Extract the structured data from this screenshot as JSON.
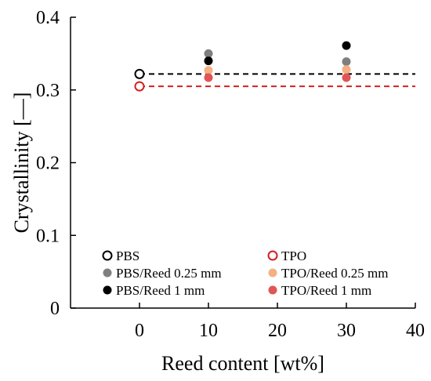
{
  "chart_data": {
    "type": "scatter",
    "xlabel": "Reed content [wt%]",
    "ylabel": "Crystallinity [—]",
    "xlim": [
      -10,
      40
    ],
    "ylim": [
      0,
      0.4
    ],
    "xticks": [
      0,
      10,
      20,
      30,
      40
    ],
    "yticks": [
      0,
      0.1,
      0.2,
      0.3,
      0.4
    ],
    "xtick_labels": [
      "0",
      "10",
      "20",
      "30",
      "40"
    ],
    "ytick_labels": [
      "0",
      "0.1",
      "0.2",
      "0.3",
      "0.4"
    ],
    "grid": false,
    "legend_position": "bottom-left, inside plot",
    "series": [
      {
        "name": "PBS",
        "marker": "open-circle",
        "color": "#000000",
        "x": [
          0
        ],
        "y": [
          0.322
        ]
      },
      {
        "name": "TPO",
        "marker": "open-circle",
        "color": "#d42020",
        "x": [
          0
        ],
        "y": [
          0.305
        ]
      },
      {
        "name": "PBS/Reed 0.25 mm",
        "marker": "filled-circle",
        "color": "#7f7f7f",
        "x": [
          10,
          30
        ],
        "y": [
          0.35,
          0.339
        ]
      },
      {
        "name": "TPO/Reed 0.25 mm",
        "marker": "filled-circle",
        "color": "#f4b183",
        "x": [
          10,
          30
        ],
        "y": [
          0.327,
          0.328
        ]
      },
      {
        "name": "PBS/Reed 1 mm",
        "marker": "filled-circle",
        "color": "#000000",
        "x": [
          10,
          30
        ],
        "y": [
          0.34,
          0.361
        ]
      },
      {
        "name": "TPO/Reed 1 mm",
        "marker": "filled-circle",
        "color": "#e05555",
        "x": [
          10,
          30
        ],
        "y": [
          0.317,
          0.317
        ]
      }
    ],
    "reference_lines": [
      {
        "series": "PBS",
        "style": "dashed",
        "color": "#000000",
        "y": 0.322,
        "x_from": 0,
        "x_to": 40
      },
      {
        "series": "TPO",
        "style": "dashed",
        "color": "#d42020",
        "y": 0.305,
        "x_from": 0,
        "x_to": 40
      }
    ]
  }
}
